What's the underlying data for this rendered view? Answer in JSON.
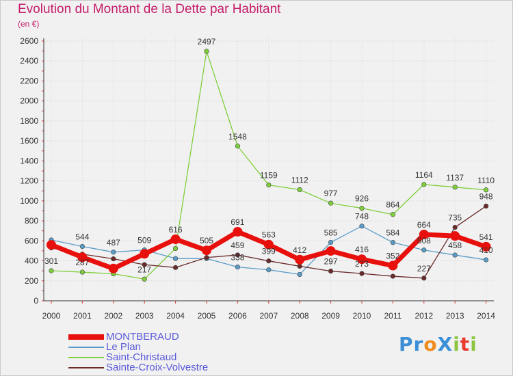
{
  "title": "Evolution du Montant de la Dette par Habitant",
  "unit": "(en €)",
  "brand": {
    "name": "ProXiti",
    "letters": [
      {
        "ch": "P",
        "color": "#3a8fd6"
      },
      {
        "ch": "r",
        "color": "#3a8fd6"
      },
      {
        "ch": "o",
        "color": "#f08c1e"
      },
      {
        "ch": "X",
        "color": "#3a8fd6"
      },
      {
        "ch": "i",
        "color": "#8bc53f"
      },
      {
        "ch": "t",
        "color": "#e63b2e"
      },
      {
        "ch": "i",
        "color": "#8bc53f"
      }
    ]
  },
  "chart_data": {
    "type": "line",
    "title": "Evolution du Montant de la Dette par Habitant",
    "ylabel": "(en €)",
    "xlabel": "",
    "categories": [
      "2000",
      "2001",
      "2002",
      "2003",
      "2004",
      "2005",
      "2006",
      "2007",
      "2008",
      "2009",
      "2010",
      "2011",
      "2012",
      "2013",
      "2014"
    ],
    "ylim": [
      0,
      2600
    ],
    "yticks": [
      0,
      200,
      400,
      600,
      800,
      1000,
      1200,
      1400,
      1600,
      1800,
      2000,
      2200,
      2400,
      2600
    ],
    "grid": true,
    "legend_position": "bottom-left",
    "series": [
      {
        "name": "MONTBERAUD",
        "color": "#e8100c",
        "values": [
          560,
          436,
          323,
          470,
          616,
          505,
          691,
          563,
          412,
          499,
          416,
          352,
          664,
          649,
          541
        ],
        "labels": [
          "",
          "",
          "",
          "",
          "616",
          "505",
          "691",
          "563",
          "412",
          "",
          "416",
          "352",
          "664",
          "",
          "541"
        ]
      },
      {
        "name": "Le Plan",
        "color": "#5a9bc8",
        "values": [
          609,
          544,
          487,
          509,
          423,
          423,
          338,
          310,
          264,
          585,
          748,
          584,
          508,
          458,
          410
        ],
        "labels": [
          "",
          "544",
          "487",
          "509",
          "",
          "",
          "338",
          "",
          "",
          "585",
          "748",
          "584",
          "508",
          "458",
          "410"
        ]
      },
      {
        "name": "Saint-Christaud",
        "color": "#7fcf3a",
        "values": [
          301,
          287,
          270,
          217,
          524,
          2497,
          1548,
          1159,
          1112,
          977,
          926,
          864,
          1164,
          1137,
          1110
        ],
        "labels": [
          "301",
          "287",
          "",
          "217",
          "",
          "2497",
          "1548",
          "1159",
          "1112",
          "977",
          "926",
          "864",
          "1164",
          "1137",
          "1110"
        ]
      },
      {
        "name": "Sainte-Croix-Volvestre",
        "color": "#6b2a2a",
        "values": [
          529,
          467,
          420,
          362,
          333,
          433,
          459,
          399,
          346,
          297,
          273,
          246,
          227,
          735,
          948
        ],
        "labels": [
          "",
          "",
          "",
          "",
          "",
          "",
          "459",
          "399",
          "",
          "297",
          "273",
          "",
          "227",
          "735",
          "948"
        ]
      }
    ]
  }
}
